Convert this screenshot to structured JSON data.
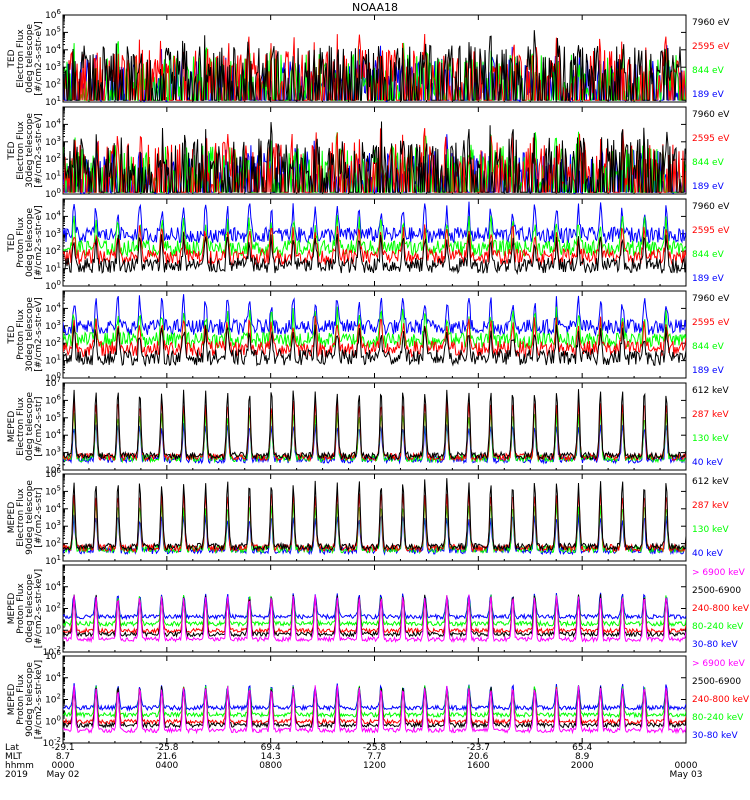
{
  "title": "NOAA18",
  "colors": {
    "black": "#000000",
    "red": "#ff0000",
    "green": "#00ff00",
    "blue": "#0000ff",
    "magenta": "#ff00ff"
  },
  "chart_data": [
    {
      "type": "line",
      "instrument": "TED",
      "ylabel_lines": [
        "TED",
        "Electron Flux",
        "0deg telescope",
        "[#/cm2-s-str-eV]"
      ],
      "ylim": [
        10,
        1000000
      ],
      "y_log": true,
      "y_tick_exponents": [
        1,
        2,
        3,
        4,
        5,
        6
      ],
      "legend": [
        {
          "label": "7960 eV",
          "color": "#000000"
        },
        {
          "label": "2595 eV",
          "color": "#ff0000"
        },
        {
          "label": "844 eV",
          "color": "#00ff00"
        },
        {
          "label": "189 eV",
          "color": "#0000ff"
        }
      ],
      "style": "burst"
    },
    {
      "type": "line",
      "instrument": "TED",
      "ylabel_lines": [
        "TED",
        "Electron Flux",
        "30deg telescope",
        "[#/cm2-s-str-eV]"
      ],
      "ylim": [
        1,
        100000
      ],
      "y_log": true,
      "y_tick_exponents": [
        0,
        1,
        2,
        3,
        4
      ],
      "legend": [
        {
          "label": "7960 eV",
          "color": "#000000"
        },
        {
          "label": "2595 eV",
          "color": "#ff0000"
        },
        {
          "label": "844 eV",
          "color": "#00ff00"
        },
        {
          "label": "189 eV",
          "color": "#0000ff"
        }
      ],
      "style": "burst"
    },
    {
      "type": "line",
      "instrument": "TED",
      "ylabel_lines": [
        "TED",
        "Proton Flux",
        "0deg telescope",
        "[#/cm2-s-str-eV]"
      ],
      "ylim": [
        1,
        100000
      ],
      "y_log": true,
      "y_tick_exponents": [
        0,
        1,
        2,
        3,
        4
      ],
      "legend": [
        {
          "label": "7960 eV",
          "color": "#000000"
        },
        {
          "label": "2595 eV",
          "color": "#ff0000"
        },
        {
          "label": "844 eV",
          "color": "#00ff00"
        },
        {
          "label": "189 eV",
          "color": "#0000ff"
        }
      ],
      "style": "dense"
    },
    {
      "type": "line",
      "instrument": "TED",
      "ylabel_lines": [
        "TED",
        "Proton Flux",
        "30deg telescope",
        "[#/cm2-s-str-eV]"
      ],
      "ylim": [
        1,
        100000
      ],
      "y_log": true,
      "y_tick_exponents": [
        0,
        1,
        2,
        3,
        4
      ],
      "legend": [
        {
          "label": "7960 eV",
          "color": "#000000"
        },
        {
          "label": "2595 eV",
          "color": "#ff0000"
        },
        {
          "label": "844 eV",
          "color": "#00ff00"
        },
        {
          "label": "189 eV",
          "color": "#0000ff"
        }
      ],
      "style": "dense2"
    },
    {
      "type": "line",
      "instrument": "MEPED",
      "ylabel_lines": [
        "MEPED",
        "Electron Flux",
        "0deg telescope",
        "[#/cm2-s-str]"
      ],
      "ylim": [
        100,
        10000000
      ],
      "y_log": true,
      "y_tick_exponents": [
        2,
        3,
        4,
        5,
        6,
        7
      ],
      "legend": [
        {
          "label": "612 keV",
          "color": "#000000"
        },
        {
          "label": "287 keV",
          "color": "#ff0000"
        },
        {
          "label": "130 keV",
          "color": "#00ff00"
        },
        {
          "label": "40 keV",
          "color": "#0000ff"
        }
      ],
      "style": "peaks"
    },
    {
      "type": "line",
      "instrument": "MEPED",
      "ylabel_lines": [
        "MEPED",
        "Electron Flux",
        "90deg telescope",
        "[#/cm2-s-str]"
      ],
      "ylim": [
        10,
        1000000
      ],
      "y_log": true,
      "y_tick_exponents": [
        1,
        2,
        3,
        4,
        5,
        6
      ],
      "legend": [
        {
          "label": "612 keV",
          "color": "#000000"
        },
        {
          "label": "287 keV",
          "color": "#ff0000"
        },
        {
          "label": "130 keV",
          "color": "#00ff00"
        },
        {
          "label": "40 keV",
          "color": "#0000ff"
        }
      ],
      "style": "peaks2"
    },
    {
      "type": "line",
      "instrument": "MEPED",
      "ylabel_lines": [
        "MEPED",
        "Proton Flux",
        "0deg telescope",
        "[#/cm2-s-str-keV]"
      ],
      "ylim": [
        0.01,
        1000000
      ],
      "y_log": true,
      "y_tick_exponents": [
        -2,
        0,
        2,
        4
      ],
      "legend": [
        {
          "label": "> 6900 keV",
          "color": "#ff00ff"
        },
        {
          "label": "2500-6900",
          "color": "#000000"
        },
        {
          "label": "240-800 keV",
          "color": "#ff0000"
        },
        {
          "label": "80-240 keV",
          "color": "#00ff00"
        },
        {
          "label": "30-80 keV",
          "color": "#0000ff"
        }
      ],
      "style": "proton"
    },
    {
      "type": "line",
      "instrument": "MEPED",
      "ylabel_lines": [
        "MEPED",
        "Proton Flux",
        "90deg telescope",
        "[#/cm2-s-str-keV]"
      ],
      "ylim": [
        0.01,
        1000000
      ],
      "y_log": true,
      "y_tick_exponents": [
        -2,
        0,
        2,
        4,
        6
      ],
      "legend": [
        {
          "label": "> 6900 keV",
          "color": "#ff00ff"
        },
        {
          "label": "2500-6900",
          "color": "#000000"
        },
        {
          "label": "240-800 keV",
          "color": "#ff0000"
        },
        {
          "label": "80-240 keV",
          "color": "#00ff00"
        },
        {
          "label": "30-80 keV",
          "color": "#0000ff"
        }
      ],
      "style": "proton2"
    }
  ],
  "x_axis": {
    "row_labels": [
      "Lat",
      "MLT",
      "hhmm",
      "2019"
    ],
    "ticks": [
      {
        "hour": 0,
        "lat": "-29.1",
        "mlt": "8.7",
        "hhmm": "0000",
        "date": "May 02"
      },
      {
        "hour": 4,
        "lat": "-25.8",
        "mlt": "21.6",
        "hhmm": "0400",
        "date": ""
      },
      {
        "hour": 8,
        "lat": "69.4",
        "mlt": "14.3",
        "hhmm": "0800",
        "date": ""
      },
      {
        "hour": 12,
        "lat": "-25.8",
        "mlt": "7.7",
        "hhmm": "1200",
        "date": ""
      },
      {
        "hour": 16,
        "lat": "-23.7",
        "mlt": "20.6",
        "hhmm": "1600",
        "date": ""
      },
      {
        "hour": 20,
        "lat": "65.4",
        "mlt": "8.9",
        "hhmm": "2000",
        "date": ""
      },
      {
        "hour": 24,
        "lat": "",
        "mlt": "",
        "hhmm": "0000",
        "date": "May 03"
      }
    ],
    "xlim_hours": [
      0,
      24
    ]
  }
}
